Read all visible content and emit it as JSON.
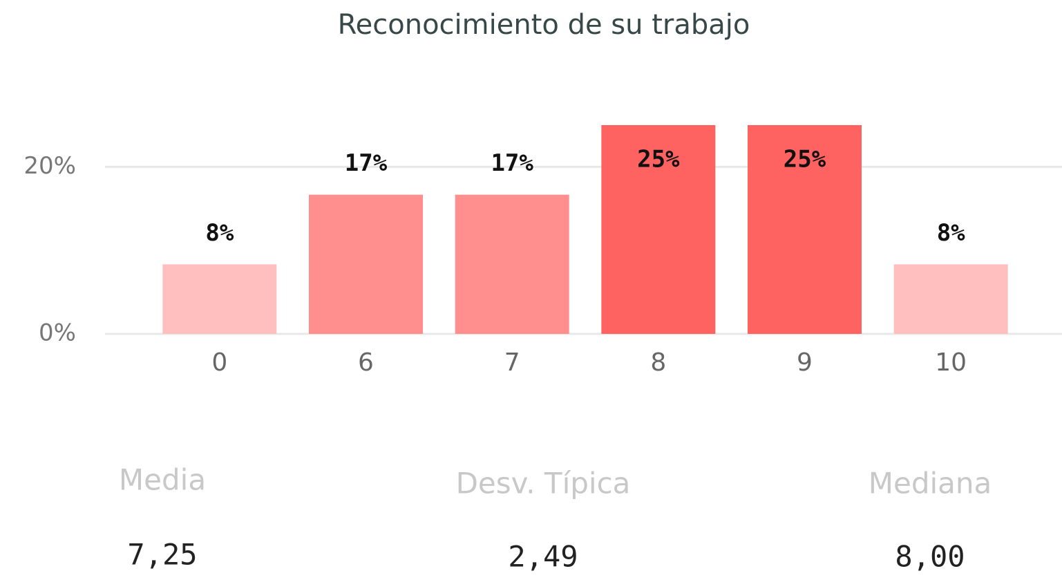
{
  "chart_data": {
    "type": "bar",
    "title": "Reconocimiento de su trabajo",
    "categories": [
      "0",
      "6",
      "7",
      "8",
      "9",
      "10"
    ],
    "values": [
      8.33,
      16.67,
      16.67,
      25,
      25,
      8.33
    ],
    "value_labels": [
      "8%",
      "17%",
      "17%",
      "25%",
      "25%",
      "8%"
    ],
    "colors": [
      "#ffbfbf",
      "#ff8f8f",
      "#ff8f8f",
      "#ff6361",
      "#ff6361",
      "#ffbfbf"
    ],
    "ylim": [
      0,
      25
    ],
    "yticks": [
      {
        "value": 0,
        "label": "0%"
      },
      {
        "value": 20,
        "label": "20%"
      }
    ],
    "grid": true
  },
  "stats": [
    {
      "label": "Media",
      "value": "7,25"
    },
    {
      "label": "Desv. Típica",
      "value": "2,49"
    },
    {
      "label": "Mediana",
      "value": "8,00"
    }
  ]
}
